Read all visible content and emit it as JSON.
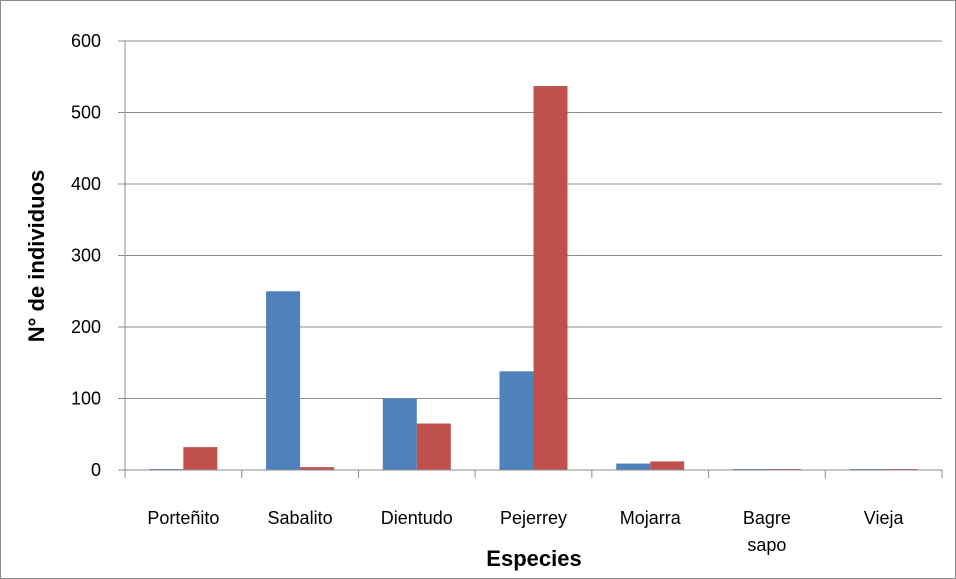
{
  "chart_data": {
    "type": "bar",
    "categories": [
      [
        "Porteñito"
      ],
      [
        "Sabalito"
      ],
      [
        "Dientudo"
      ],
      [
        "Pejerrey"
      ],
      [
        "Mojarra"
      ],
      [
        "Bagre",
        "sapo"
      ],
      [
        "Vieja"
      ]
    ],
    "series": [
      {
        "color": "#4f81bd",
        "values": [
          0,
          250,
          100,
          138,
          9,
          1,
          1
        ]
      },
      {
        "color": "#c0504d",
        "values": [
          32,
          4,
          65,
          537,
          12,
          0,
          0
        ]
      }
    ],
    "xlabel": "Especies",
    "ylabel": "N° de individuos",
    "ylim": [
      0,
      600
    ],
    "yticks": [
      0,
      100,
      200,
      300,
      400,
      500,
      600
    ],
    "grid": true,
    "gridline_color": "#8c8c8c",
    "legend": "none"
  }
}
